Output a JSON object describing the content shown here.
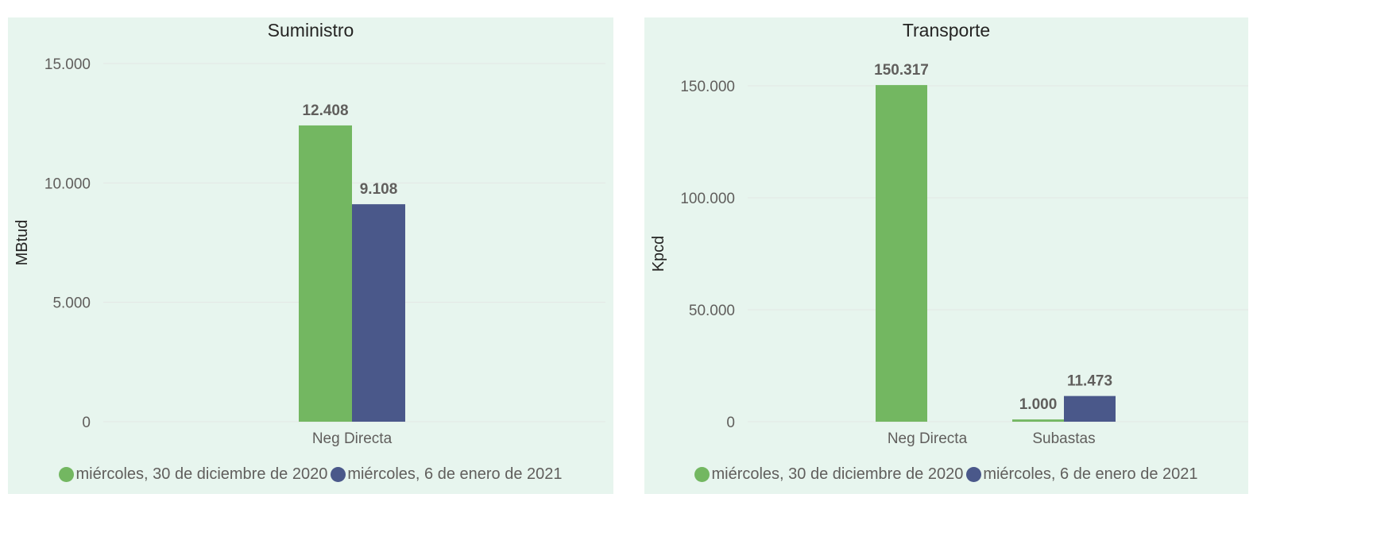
{
  "chart_data": [
    {
      "type": "bar",
      "title": "Suministro",
      "xlabel": "",
      "ylabel": "MBtud",
      "categories": [
        "Neg Directa"
      ],
      "ylim": [
        0,
        15000
      ],
      "yticks": [
        0,
        5000,
        10000,
        15000
      ],
      "ytick_labels": [
        "0",
        "5.000",
        "10.000",
        "15.000"
      ],
      "grid": true,
      "legend": "bottom",
      "series": [
        {
          "name": "miércoles, 30 de diciembre de 2020",
          "color": "#73b761",
          "values": [
            12408
          ],
          "labels": [
            "12.408"
          ]
        },
        {
          "name": "miércoles, 6 de enero de 2021",
          "color": "#4a588a",
          "values": [
            9108
          ],
          "labels": [
            "9.108"
          ]
        }
      ]
    },
    {
      "type": "bar",
      "title": "Transporte",
      "xlabel": "",
      "ylabel": "Kpcd",
      "categories": [
        "Neg Directa",
        "Subastas"
      ],
      "ylim": [
        0,
        150000
      ],
      "yticks": [
        0,
        50000,
        100000,
        150000
      ],
      "ytick_labels": [
        "0",
        "50.000",
        "100.000",
        "150.000"
      ],
      "grid": true,
      "legend": "bottom",
      "series": [
        {
          "name": "miércoles, 30 de diciembre de 2020",
          "color": "#73b761",
          "values": [
            150317,
            1000
          ],
          "labels": [
            "150.317",
            "1.000"
          ]
        },
        {
          "name": "miércoles, 6 de enero de 2021",
          "color": "#4a588a",
          "values": [
            null,
            11473
          ],
          "labels": [
            "",
            "11.473"
          ]
        }
      ]
    }
  ]
}
